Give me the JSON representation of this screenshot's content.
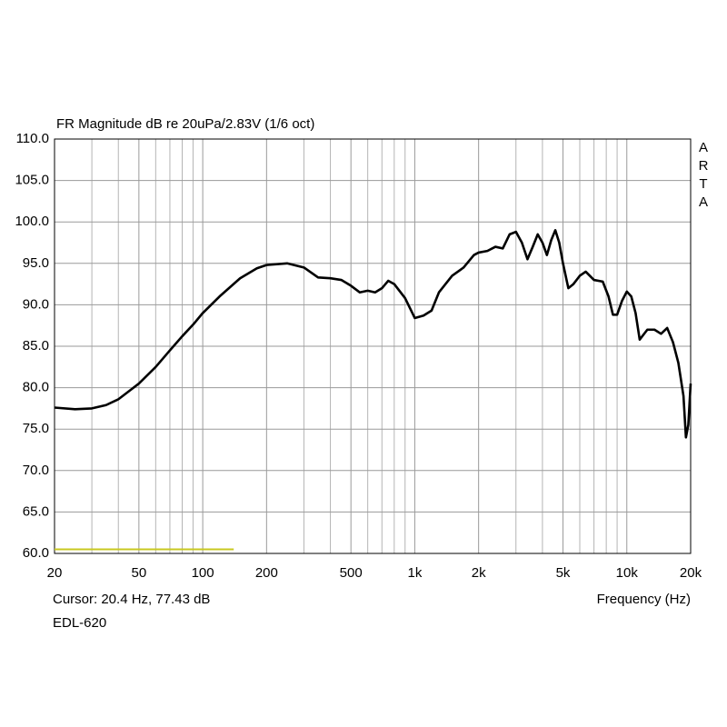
{
  "chart_data": {
    "type": "line",
    "title": "FR Magnitude dB re 20uPa/2.83V (1/6 oct)",
    "side_label": [
      "A",
      "R",
      "T",
      "A"
    ],
    "x_label": "Frequency (Hz)",
    "cursor_text": "Cursor: 20.4 Hz, 77.43 dB",
    "footer": "EDL-620",
    "x_log": true,
    "grid": true,
    "xlim": [
      20,
      20000
    ],
    "ylim": [
      60,
      110
    ],
    "xticks": [
      20,
      50,
      100,
      200,
      500,
      {
        "value": 1000,
        "label": "1k"
      },
      {
        "value": 2000,
        "label": "2k"
      },
      {
        "value": 5000,
        "label": "5k"
      },
      {
        "value": 10000,
        "label": "10k"
      },
      {
        "value": 20000,
        "label": "20k"
      }
    ],
    "x_minor_grid": [
      30,
      40,
      60,
      70,
      80,
      90,
      300,
      400,
      600,
      700,
      800,
      900,
      3000,
      4000,
      6000,
      7000,
      8000,
      9000
    ],
    "yticks": [
      {
        "value": 110,
        "label": "110.0"
      },
      {
        "value": 105,
        "label": "105.0"
      },
      {
        "value": 100,
        "label": "100.0"
      },
      {
        "value": 95,
        "label": "95.0"
      },
      {
        "value": 90,
        "label": "90.0"
      },
      {
        "value": 85,
        "label": "85.0"
      },
      {
        "value": 80,
        "label": "80.0"
      },
      {
        "value": 75,
        "label": "75.0"
      },
      {
        "value": 70,
        "label": "70.0"
      },
      {
        "value": 65,
        "label": "65.0"
      },
      {
        "value": 60,
        "label": "60.0"
      }
    ],
    "marker_line": {
      "color": "#c8c820",
      "x": [
        20,
        140
      ],
      "y": [
        60.5,
        60.5
      ]
    },
    "series": [
      {
        "color": "#000000",
        "x": [
          20,
          25,
          30,
          35,
          40,
          45,
          50,
          60,
          70,
          80,
          90,
          100,
          120,
          150,
          180,
          200,
          250,
          300,
          350,
          400,
          450,
          500,
          550,
          600,
          650,
          700,
          750,
          800,
          900,
          1000,
          1100,
          1200,
          1300,
          1500,
          1700,
          1900,
          2000,
          2200,
          2400,
          2600,
          2800,
          3000,
          3200,
          3400,
          3600,
          3800,
          4000,
          4200,
          4400,
          4600,
          4800,
          5000,
          5300,
          5600,
          6000,
          6400,
          7000,
          7700,
          8200,
          8600,
          9000,
          9500,
          10000,
          10500,
          11000,
          11500,
          12500,
          13500,
          14500,
          15500,
          16500,
          17500,
          18500,
          19000,
          19500,
          20000
        ],
        "values": [
          77.6,
          77.4,
          77.5,
          77.9,
          78.6,
          79.6,
          80.5,
          82.5,
          84.5,
          86.2,
          87.6,
          89.0,
          91.0,
          93.2,
          94.4,
          94.8,
          95.0,
          94.5,
          93.3,
          93.2,
          93.0,
          92.3,
          91.5,
          91.7,
          91.5,
          92.0,
          92.9,
          92.5,
          90.8,
          88.4,
          88.7,
          89.3,
          91.5,
          93.5,
          94.5,
          96.0,
          96.3,
          96.5,
          97.0,
          96.8,
          98.5,
          98.8,
          97.5,
          95.5,
          97.0,
          98.5,
          97.5,
          96.0,
          97.8,
          99.0,
          97.5,
          95.0,
          92.0,
          92.5,
          93.5,
          94.0,
          93.0,
          92.8,
          91.0,
          88.8,
          88.8,
          90.5,
          91.6,
          91.0,
          89.0,
          85.8,
          87.0,
          87.0,
          86.5,
          87.2,
          85.5,
          83.0,
          79.0,
          74.0,
          75.5,
          80.5
        ]
      }
    ]
  }
}
